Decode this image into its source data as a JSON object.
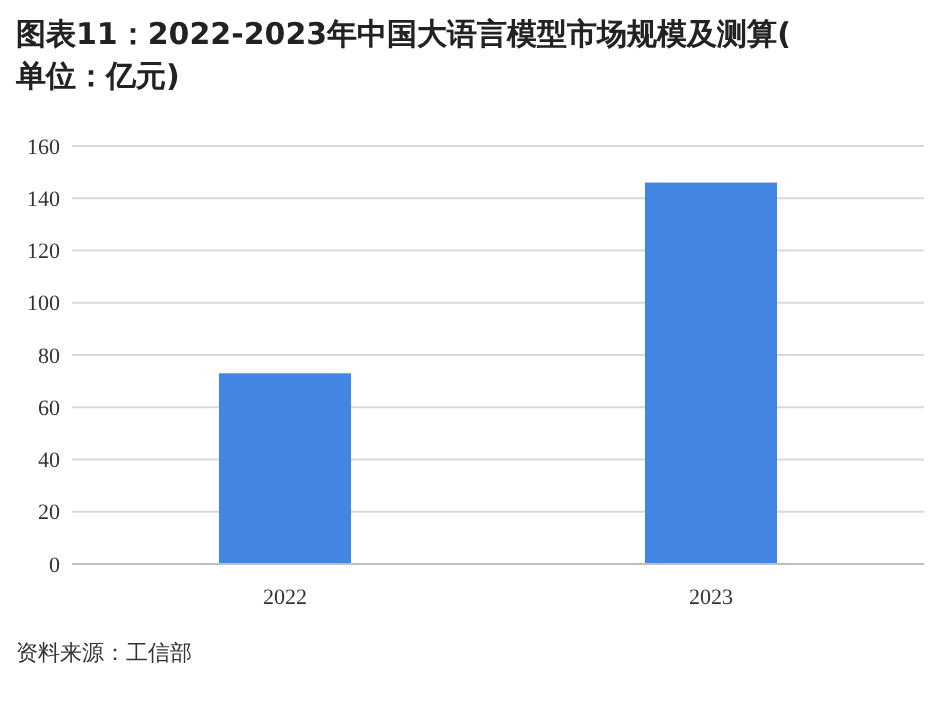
{
  "chart_data": {
    "type": "bar",
    "title": "图表11：2022-2023年中国大语言模型市场规模及测算(单位：亿元)",
    "categories": [
      "2022",
      "2023"
    ],
    "values": [
      73,
      146
    ],
    "color": "#4285e3",
    "ylim": [
      0,
      160
    ],
    "yticks": [
      0,
      20,
      40,
      60,
      80,
      100,
      120,
      140,
      160
    ],
    "grid": "y",
    "annotations": [
      "资料来源：工信部"
    ]
  }
}
